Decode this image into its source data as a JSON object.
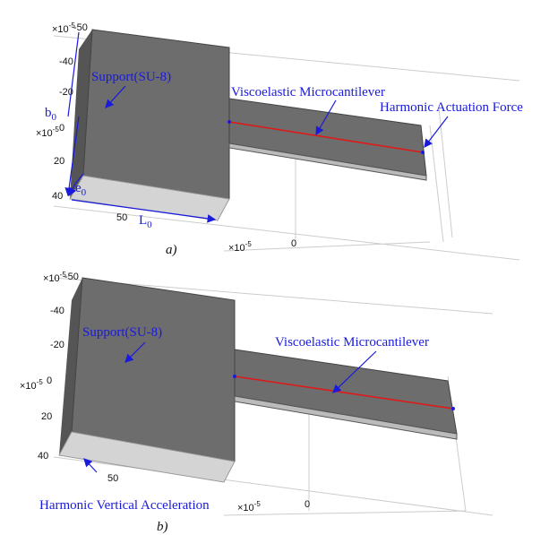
{
  "panels": [
    {
      "label": "a)",
      "support": "Support(SU-8)",
      "beam": "Viscoelastic Microcantilever",
      "load": "Harmonic Actuation Force",
      "dims": [
        {
          "base": "b",
          "sub": "0"
        },
        {
          "base": "e",
          "sub": "0"
        },
        {
          "base": "L",
          "sub": "0"
        }
      ],
      "yticks": [
        "-50",
        "-40",
        "-20",
        "0",
        "20",
        "40"
      ],
      "xticks": [
        "50",
        "0"
      ],
      "scale": {
        "base": "×10",
        "exp": "-5"
      }
    },
    {
      "label": "b)",
      "support": "Support(SU-8)",
      "beam": "Viscoelastic Microcantilever",
      "load": "Harmonic Vertical Acceleration",
      "yticks": [
        "-50",
        "-40",
        "-20",
        "0",
        "20",
        "40"
      ],
      "xticks": [
        "50",
        "0"
      ],
      "scale": {
        "base": "×10",
        "exp": "-5"
      }
    }
  ]
}
